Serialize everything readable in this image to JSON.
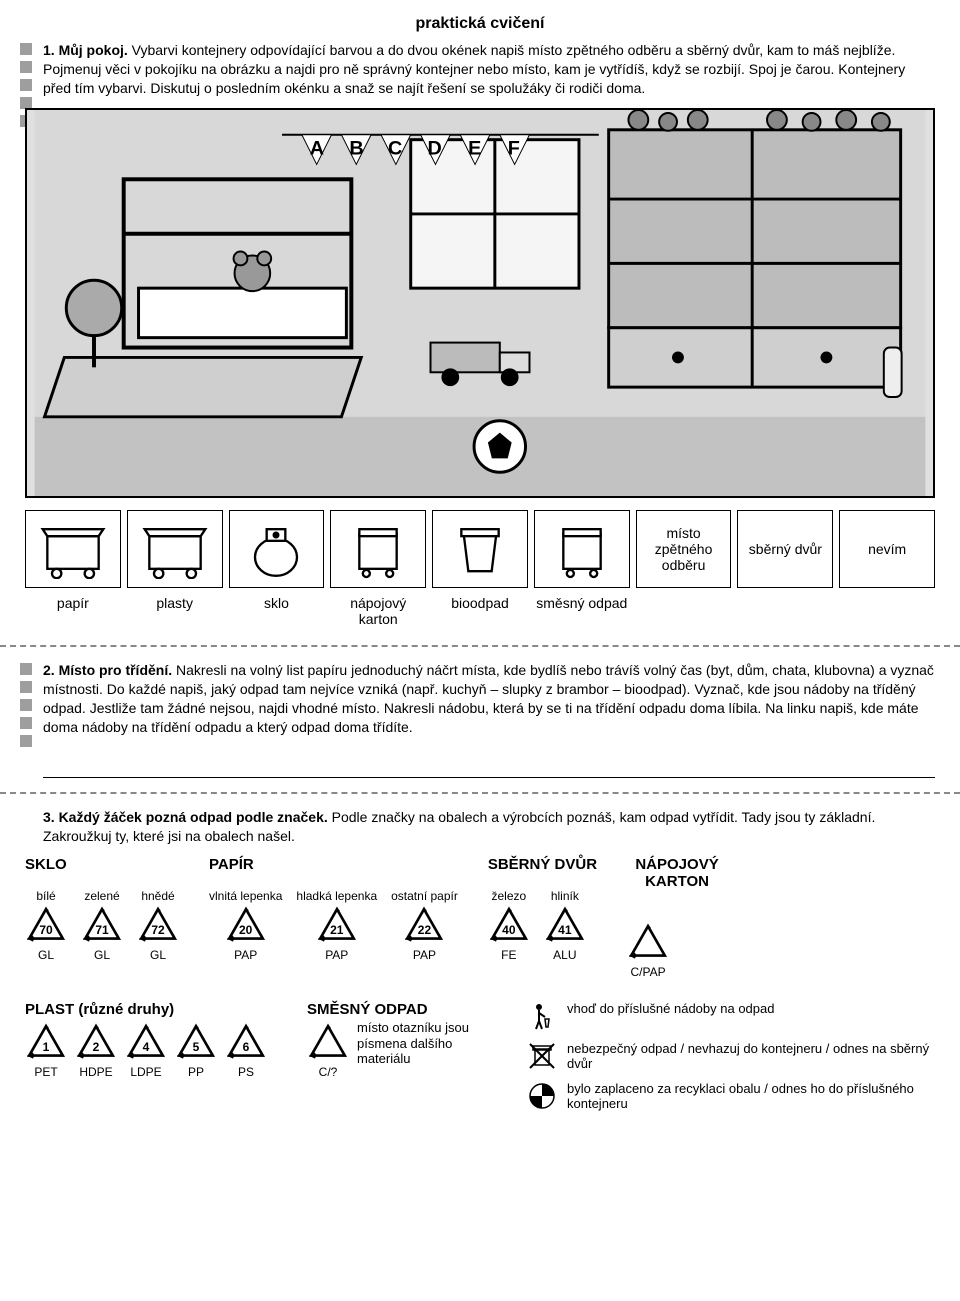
{
  "page_title": "praktická cvičení",
  "ex1": {
    "lead": "1. Můj pokoj.",
    "text": " Vybarvi kontejnery odpovídající barvou a do dvou okének napiš místo zpětného odběru a sběrný dvůr, kam to máš nejblíže. Pojmenuj věci v pokojíku na obrázku a najdi pro ně správný kontejner nebo místo, kam je vytřídíš, když se rozbijí. Spoj je čarou. Kontejnery před tím vybarvi. Diskutuj o posledním okénku a snaž se najít řešení se spolužáky či rodiči doma."
  },
  "bins": {
    "icons": [
      "papir",
      "plasty",
      "sklo",
      "napojovy",
      "bioodpad",
      "smesny"
    ],
    "text_cells": [
      "místo zpětného odběru",
      "sběrný dvůr",
      "nevím"
    ],
    "labels": [
      "papír",
      "plasty",
      "sklo",
      "nápojový karton",
      "bioodpad",
      "směsný odpad",
      "",
      "",
      ""
    ]
  },
  "ex2": {
    "lead": "2. Místo pro třídění.",
    "text": " Nakresli na volný list papíru jednoduchý náčrt místa, kde bydlíš nebo trávíš volný čas (byt, dům, chata, klubovna) a vyznač místnosti. Do každé napiš, jaký odpad tam nejvíce vzniká (např. kuchyň – slupky z brambor – bioodpad). Vyznač, kde jsou nádoby na tříděný odpad. Jestliže tam žádné nejsou, najdi vhodné místo. Nakresli nádobu, která by se ti na třídění odpadu doma líbila. Na linku napiš, kde máte doma nádoby na třídění odpadu a který odpad doma třídíte."
  },
  "ex3": {
    "lead": "3. Každý žáček pozná odpad podle značek.",
    "text": " Podle značky na obalech a výrobcích poznáš, kam odpad vytřídit. Tady jsou ty základní. Zakroužkuj ty, které jsi na obalech našel."
  },
  "symbols": {
    "sklo": {
      "title": "SKLO",
      "items": [
        {
          "sub": "bílé",
          "num": "70",
          "code": "GL"
        },
        {
          "sub": "zelené",
          "num": "71",
          "code": "GL"
        },
        {
          "sub": "hnědé",
          "num": "72",
          "code": "GL"
        }
      ]
    },
    "papir": {
      "title": "PAPÍR",
      "items": [
        {
          "sub": "vlnitá lepenka",
          "num": "20",
          "code": "PAP"
        },
        {
          "sub": "hladká lepenka",
          "num": "21",
          "code": "PAP"
        },
        {
          "sub": "ostatní papír",
          "num": "22",
          "code": "PAP"
        }
      ]
    },
    "sberny": {
      "title": "SBĚRNÝ DVŮR",
      "items": [
        {
          "sub": "železo",
          "num": "40",
          "code": "FE"
        },
        {
          "sub": "hliník",
          "num": "41",
          "code": "ALU"
        }
      ]
    },
    "napojovy": {
      "title": "NÁPOJOVÝ KARTON",
      "items": [
        {
          "sub": "",
          "num": "",
          "code": "C/PAP"
        }
      ]
    },
    "plast": {
      "title": "PLAST (různé druhy)",
      "items": [
        {
          "num": "1",
          "code": "PET"
        },
        {
          "num": "2",
          "code": "HDPE"
        },
        {
          "num": "4",
          "code": "LDPE"
        },
        {
          "num": "5",
          "code": "PP"
        },
        {
          "num": "6",
          "code": "PS"
        }
      ]
    },
    "smesny": {
      "title": "SMĚSNÝ ODPAD",
      "code": "C/?",
      "note": "místo otazníku jsou písmena dalšího materiálu"
    },
    "info": [
      "vhoď do příslušné nádoby na odpad",
      "nebezpečný odpad / nevhazuj do kontejneru / odnes na sběrný dvůr",
      "bylo zaplaceno za recyklaci obalu / odnes ho do příslušného kontejneru"
    ]
  },
  "colors": {
    "grey": "#9e9e9e",
    "border": "#000000",
    "dash": "#888888",
    "light": "#e0e0e0"
  }
}
